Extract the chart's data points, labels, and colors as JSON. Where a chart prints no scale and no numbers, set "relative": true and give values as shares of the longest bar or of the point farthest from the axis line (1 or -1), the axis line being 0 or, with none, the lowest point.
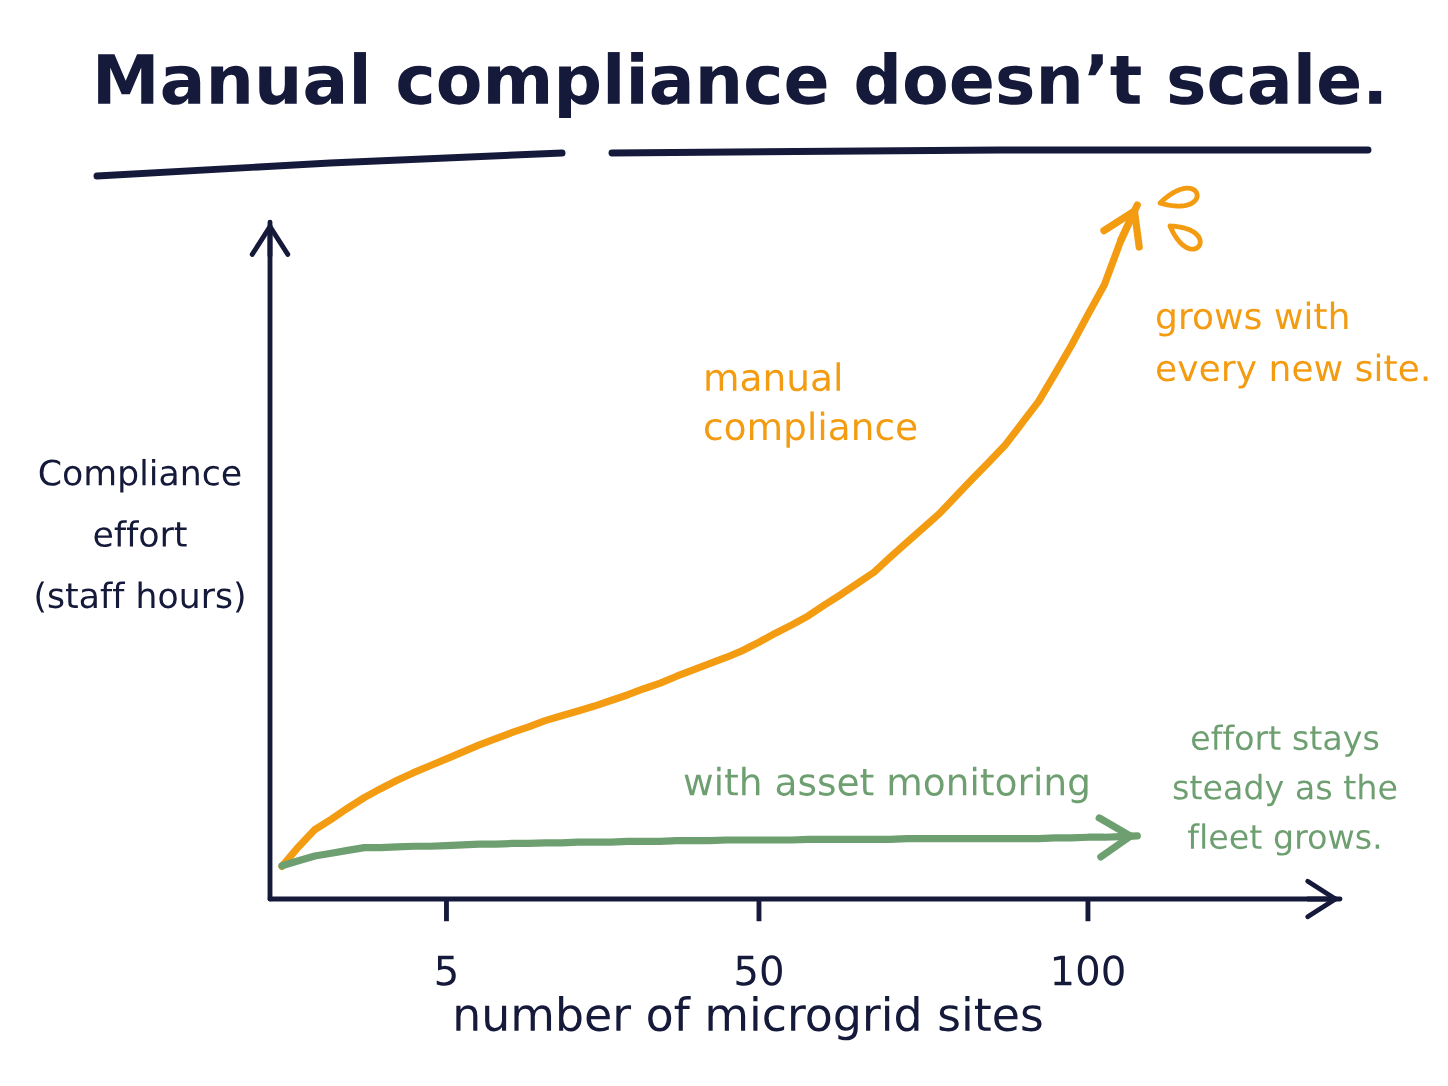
{
  "chart_data": {
    "type": "line",
    "title": "Manual compliance doesn’t scale.",
    "xlabel": "number of microgrid sites",
    "ylabel": "Compliance\neffort\n(staff hours)",
    "relative": true,
    "categories": [
      null,
      null,
      null,
      null,
      null,
      null,
      null,
      null,
      null,
      null,
      "5",
      null,
      null,
      null,
      null,
      null,
      null,
      null,
      null,
      null,
      null,
      null,
      null,
      null,
      null,
      null,
      null,
      null,
      null,
      "50",
      null,
      null,
      null,
      null,
      null,
      null,
      null,
      null,
      null,
      null,
      null,
      null,
      null,
      null,
      null,
      null,
      null,
      null,
      null,
      "100",
      null,
      null,
      null
    ],
    "series": [
      {
        "name": "manual\ncompliance",
        "color": "#f39c12",
        "values": [
          0.047,
          0.075,
          0.1,
          0.115,
          0.131,
          0.146,
          0.159,
          0.171,
          0.182,
          0.192,
          0.202,
          0.212,
          0.222,
          0.231,
          0.24,
          0.248,
          0.257,
          0.264,
          0.271,
          0.278,
          0.286,
          0.294,
          0.303,
          0.311,
          0.321,
          0.33,
          0.339,
          0.348,
          0.358,
          0.37,
          0.383,
          0.395,
          0.408,
          0.424,
          0.439,
          0.455,
          0.471,
          0.493,
          0.514,
          0.535,
          0.556,
          0.581,
          0.606,
          0.63,
          0.655,
          0.686,
          0.717,
          0.757,
          0.798,
          0.842,
          0.885,
          0.949,
          1.0
        ]
      },
      {
        "name": "with asset monitoring",
        "color": "#6e9f71",
        "values": [
          0.048,
          0.055,
          0.062,
          0.066,
          0.07,
          0.074,
          0.074,
          0.075,
          0.076,
          0.076,
          0.077,
          0.078,
          0.079,
          0.079,
          0.08,
          0.08,
          0.081,
          0.081,
          0.082,
          0.082,
          0.082,
          0.083,
          0.083,
          0.083,
          0.084,
          0.084,
          0.084,
          0.085,
          0.085,
          0.085,
          0.085,
          0.085,
          0.086,
          0.086,
          0.086,
          0.086,
          0.086,
          0.086,
          0.087,
          0.087,
          0.087,
          0.087,
          0.087,
          0.087,
          0.087,
          0.087,
          0.087,
          0.088,
          0.088,
          0.089,
          0.089,
          0.09,
          0.091
        ]
      }
    ],
    "annotations": [
      "grows with\nevery new site.",
      "effort stays\nsteady as the\nfleet grows."
    ]
  }
}
